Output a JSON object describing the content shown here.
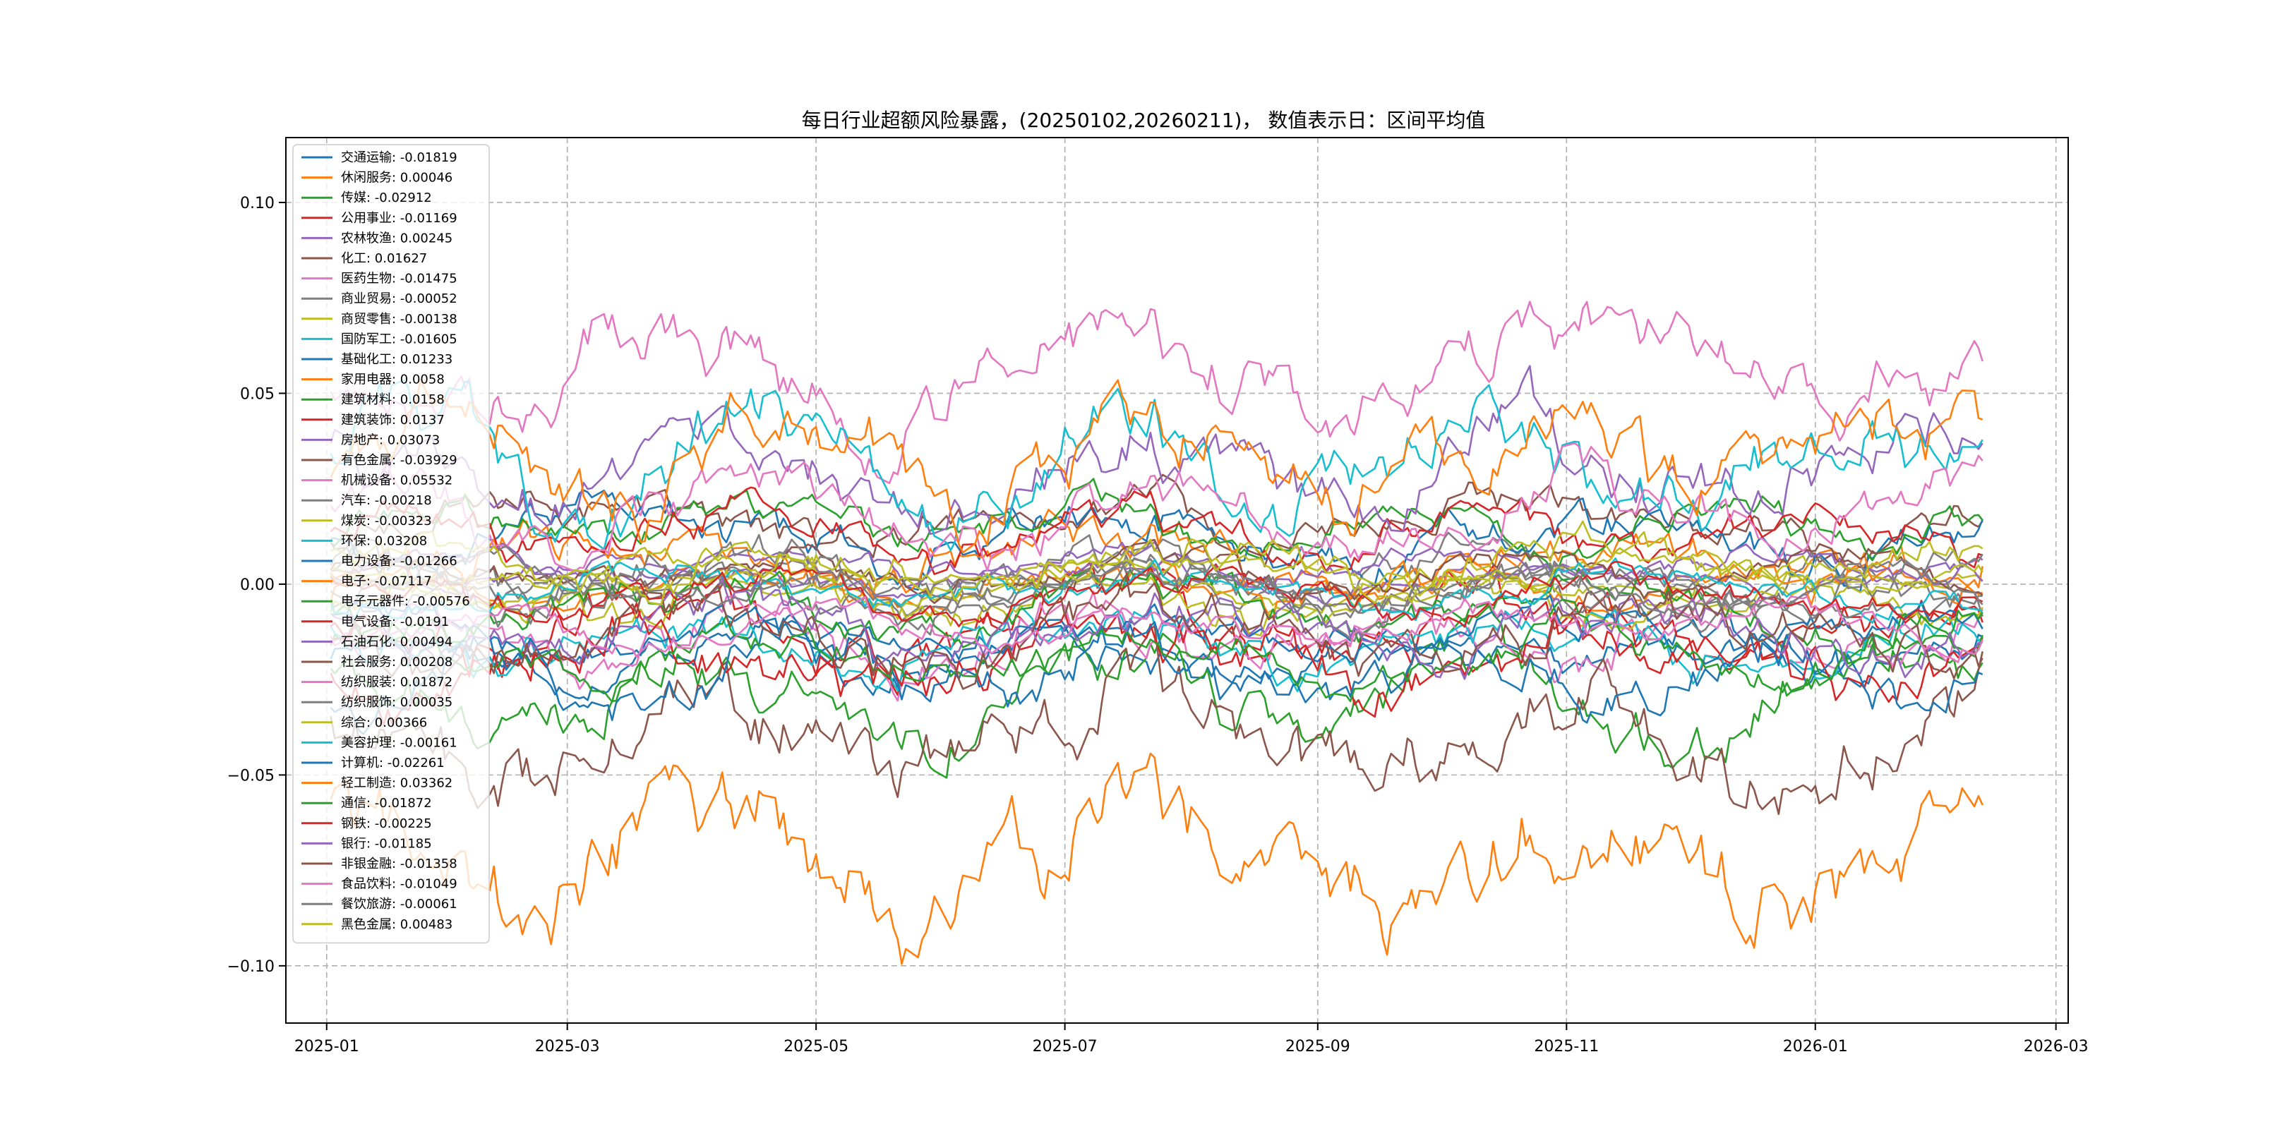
{
  "chart_data": {
    "type": "line",
    "title": "每日行业超额风险暴露，(20250102,20260211)， 数值表示日：区间平均值",
    "xlabel": "",
    "ylabel": "",
    "x_range": [
      "2025-01-02",
      "2026-02-11"
    ],
    "xlim": [
      "2024-12-22",
      "2026-03-04"
    ],
    "ylim": [
      -0.115,
      0.117
    ],
    "x_ticks": [
      "2025-01",
      "2025-03",
      "2025-05",
      "2025-07",
      "2025-09",
      "2025-11",
      "2026-01",
      "2026-03"
    ],
    "y_ticks": [
      0.1,
      0.05,
      0.0,
      -0.05,
      -0.1
    ],
    "y_tick_labels": [
      "0.10",
      "0.05",
      "0.00",
      "−0.05",
      "−0.10"
    ],
    "grid": true,
    "legend_position": "upper-left",
    "series": [
      {
        "name": "交通运输",
        "mean": -0.01819,
        "color": "#1f77b4",
        "label": "交通运输: -0.01819"
      },
      {
        "name": "休闲服务",
        "mean": 0.00046,
        "color": "#ff7f0e",
        "label": "休闲服务: 0.00046"
      },
      {
        "name": "传媒",
        "mean": -0.02912,
        "color": "#2ca02c",
        "label": "传媒: -0.02912"
      },
      {
        "name": "公用事业",
        "mean": -0.01169,
        "color": "#d62728",
        "label": "公用事业: -0.01169"
      },
      {
        "name": "农林牧渔",
        "mean": 0.00245,
        "color": "#9467bd",
        "label": "农林牧渔: 0.00245"
      },
      {
        "name": "化工",
        "mean": 0.01627,
        "color": "#8c564b",
        "label": "化工: 0.01627"
      },
      {
        "name": "医药生物",
        "mean": -0.01475,
        "color": "#e377c2",
        "label": "医药生物: -0.01475"
      },
      {
        "name": "商业贸易",
        "mean": -0.00052,
        "color": "#7f7f7f",
        "label": "商业贸易: -0.00052"
      },
      {
        "name": "商贸零售",
        "mean": -0.00138,
        "color": "#bcbd22",
        "label": "商贸零售: -0.00138"
      },
      {
        "name": "国防军工",
        "mean": -0.01605,
        "color": "#17becf",
        "label": "国防军工: -0.01605"
      },
      {
        "name": "基础化工",
        "mean": 0.01233,
        "color": "#1f77b4",
        "label": "基础化工: 0.01233"
      },
      {
        "name": "家用电器",
        "mean": 0.0058,
        "color": "#ff7f0e",
        "label": "家用电器: 0.0058"
      },
      {
        "name": "建筑材料",
        "mean": 0.0158,
        "color": "#2ca02c",
        "label": "建筑材料: 0.0158"
      },
      {
        "name": "建筑装饰",
        "mean": 0.0137,
        "color": "#d62728",
        "label": "建筑装饰: 0.0137"
      },
      {
        "name": "房地产",
        "mean": 0.03073,
        "color": "#9467bd",
        "label": "房地产: 0.03073"
      },
      {
        "name": "有色金属",
        "mean": -0.03929,
        "color": "#8c564b",
        "label": "有色金属: -0.03929"
      },
      {
        "name": "机械设备",
        "mean": 0.05532,
        "color": "#e377c2",
        "label": "机械设备: 0.05532"
      },
      {
        "name": "汽车",
        "mean": -0.00218,
        "color": "#7f7f7f",
        "label": "汽车: -0.00218"
      },
      {
        "name": "煤炭",
        "mean": -0.00323,
        "color": "#bcbd22",
        "label": "煤炭: -0.00323"
      },
      {
        "name": "环保",
        "mean": 0.03208,
        "color": "#17becf",
        "label": "环保: 0.03208"
      },
      {
        "name": "电力设备",
        "mean": -0.01266,
        "color": "#1f77b4",
        "label": "电力设备: -0.01266"
      },
      {
        "name": "电子",
        "mean": -0.07117,
        "color": "#ff7f0e",
        "label": "电子: -0.07117"
      },
      {
        "name": "电子元器件",
        "mean": -0.00576,
        "color": "#2ca02c",
        "label": "电子元器件: -0.00576"
      },
      {
        "name": "电气设备",
        "mean": -0.0191,
        "color": "#d62728",
        "label": "电气设备: -0.0191"
      },
      {
        "name": "石油石化",
        "mean": 0.00494,
        "color": "#9467bd",
        "label": "石油石化: 0.00494"
      },
      {
        "name": "社会服务",
        "mean": 0.00208,
        "color": "#8c564b",
        "label": "社会服务: 0.00208"
      },
      {
        "name": "纺织服装",
        "mean": 0.01872,
        "color": "#e377c2",
        "label": "纺织服装: 0.01872"
      },
      {
        "name": "纺织服饰",
        "mean": 0.00035,
        "color": "#7f7f7f",
        "label": "纺织服饰: 0.00035"
      },
      {
        "name": "综合",
        "mean": 0.00366,
        "color": "#bcbd22",
        "label": "综合: 0.00366"
      },
      {
        "name": "美容护理",
        "mean": -0.00161,
        "color": "#17becf",
        "label": "美容护理: -0.00161"
      },
      {
        "name": "计算机",
        "mean": -0.02261,
        "color": "#1f77b4",
        "label": "计算机: -0.02261"
      },
      {
        "name": "轻工制造",
        "mean": 0.03362,
        "color": "#ff7f0e",
        "label": "轻工制造: 0.03362"
      },
      {
        "name": "通信",
        "mean": -0.01872,
        "color": "#2ca02c",
        "label": "通信: -0.01872"
      },
      {
        "name": "钢铁",
        "mean": -0.00225,
        "color": "#d62728",
        "label": "钢铁: -0.00225"
      },
      {
        "name": "银行",
        "mean": -0.01185,
        "color": "#9467bd",
        "label": "银行: -0.01185"
      },
      {
        "name": "非银金融",
        "mean": -0.01358,
        "color": "#8c564b",
        "label": "非银金融: -0.01358"
      },
      {
        "name": "食品饮料",
        "mean": -0.01049,
        "color": "#e377c2",
        "label": "食品饮料: -0.01049"
      },
      {
        "name": "餐饮旅游",
        "mean": -0.00061,
        "color": "#7f7f7f",
        "label": "餐饮旅游: -0.00061"
      },
      {
        "name": "黑色金属",
        "mean": 0.00483,
        "color": "#bcbd22",
        "label": "黑色金属: 0.00483"
      }
    ]
  }
}
